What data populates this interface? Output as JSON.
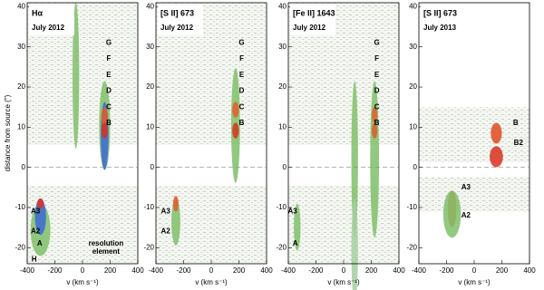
{
  "chart_data": [
    {
      "type": "image",
      "title": "Hα",
      "subtitle": "July 2012",
      "xlabel": "v (km s⁻¹)",
      "ylabel": "distance from source (\")",
      "xlim": [
        -400,
        400
      ],
      "ylim": [
        -24,
        41
      ],
      "xticks": [
        -400,
        -200,
        0,
        200,
        400
      ],
      "yticks": [
        -20,
        -10,
        0,
        10,
        20,
        30,
        40
      ],
      "annotations": [
        {
          "text": "G",
          "x": 190,
          "y": 31
        },
        {
          "text": "F",
          "x": 190,
          "y": 27
        },
        {
          "text": "E",
          "x": 190,
          "y": 23
        },
        {
          "text": "D",
          "x": 190,
          "y": 19
        },
        {
          "text": "C",
          "x": 190,
          "y": 15
        },
        {
          "text": "B",
          "x": 190,
          "y": 11
        },
        {
          "text": "A3",
          "x": -340,
          "y": -11
        },
        {
          "text": "A2",
          "x": -340,
          "y": -16
        },
        {
          "text": "A",
          "x": -310,
          "y": -19
        },
        {
          "text": "H",
          "x": -350,
          "y": -23
        },
        {
          "text": "resolution",
          "x": 170,
          "y": -19
        },
        {
          "text": "element",
          "x": 170,
          "y": -21
        }
      ]
    },
    {
      "type": "image",
      "title": "[S II] 673",
      "subtitle": "July 2012",
      "xlabel": "v (km s⁻¹)",
      "xlim": [
        -400,
        400
      ],
      "ylim": [
        -24,
        41
      ],
      "xticks": [
        -400,
        -200,
        0,
        200,
        400
      ],
      "yticks": [
        -20,
        -10,
        0,
        10,
        20,
        30,
        40
      ],
      "annotations": [
        {
          "text": "G",
          "x": 220,
          "y": 31
        },
        {
          "text": "F",
          "x": 220,
          "y": 27
        },
        {
          "text": "E",
          "x": 220,
          "y": 23
        },
        {
          "text": "D",
          "x": 220,
          "y": 19
        },
        {
          "text": "C",
          "x": 220,
          "y": 15
        },
        {
          "text": "B",
          "x": 220,
          "y": 11
        },
        {
          "text": "A3",
          "x": -330,
          "y": -11
        },
        {
          "text": "A2",
          "x": -330,
          "y": -16
        }
      ]
    },
    {
      "type": "image",
      "title": "[Fe II] 1643",
      "subtitle": "July 2012",
      "xlabel": "v (km s⁻¹)",
      "xlim": [
        -400,
        400
      ],
      "ylim": [
        -24,
        41
      ],
      "xticks": [
        -400,
        -200,
        0,
        200,
        400
      ],
      "yticks": [
        -20,
        -10,
        0,
        10,
        20,
        30,
        40
      ],
      "annotations": [
        {
          "text": "G",
          "x": 240,
          "y": 31
        },
        {
          "text": "F",
          "x": 240,
          "y": 27
        },
        {
          "text": "E",
          "x": 240,
          "y": 23
        },
        {
          "text": "D",
          "x": 240,
          "y": 19
        },
        {
          "text": "C",
          "x": 240,
          "y": 15
        },
        {
          "text": "B",
          "x": 240,
          "y": 11
        },
        {
          "text": "A3",
          "x": -370,
          "y": -11
        },
        {
          "text": "A",
          "x": -350,
          "y": -19
        }
      ]
    },
    {
      "type": "image",
      "title": "[S II] 673",
      "subtitle": "July 2013",
      "xlabel": "v (km s⁻¹)",
      "xlim": [
        -400,
        400
      ],
      "ylim": [
        -24,
        41
      ],
      "xticks": [
        -400,
        -200,
        0,
        200,
        400
      ],
      "yticks": [
        -20,
        -10,
        0,
        10,
        20,
        30,
        40
      ],
      "annotations": [
        {
          "text": "B",
          "x": 300,
          "y": 11
        },
        {
          "text": "B2",
          "x": 320,
          "y": 6
        },
        {
          "text": "A3",
          "x": -60,
          "y": -5
        },
        {
          "text": "A2",
          "x": -60,
          "y": -12
        }
      ]
    }
  ]
}
